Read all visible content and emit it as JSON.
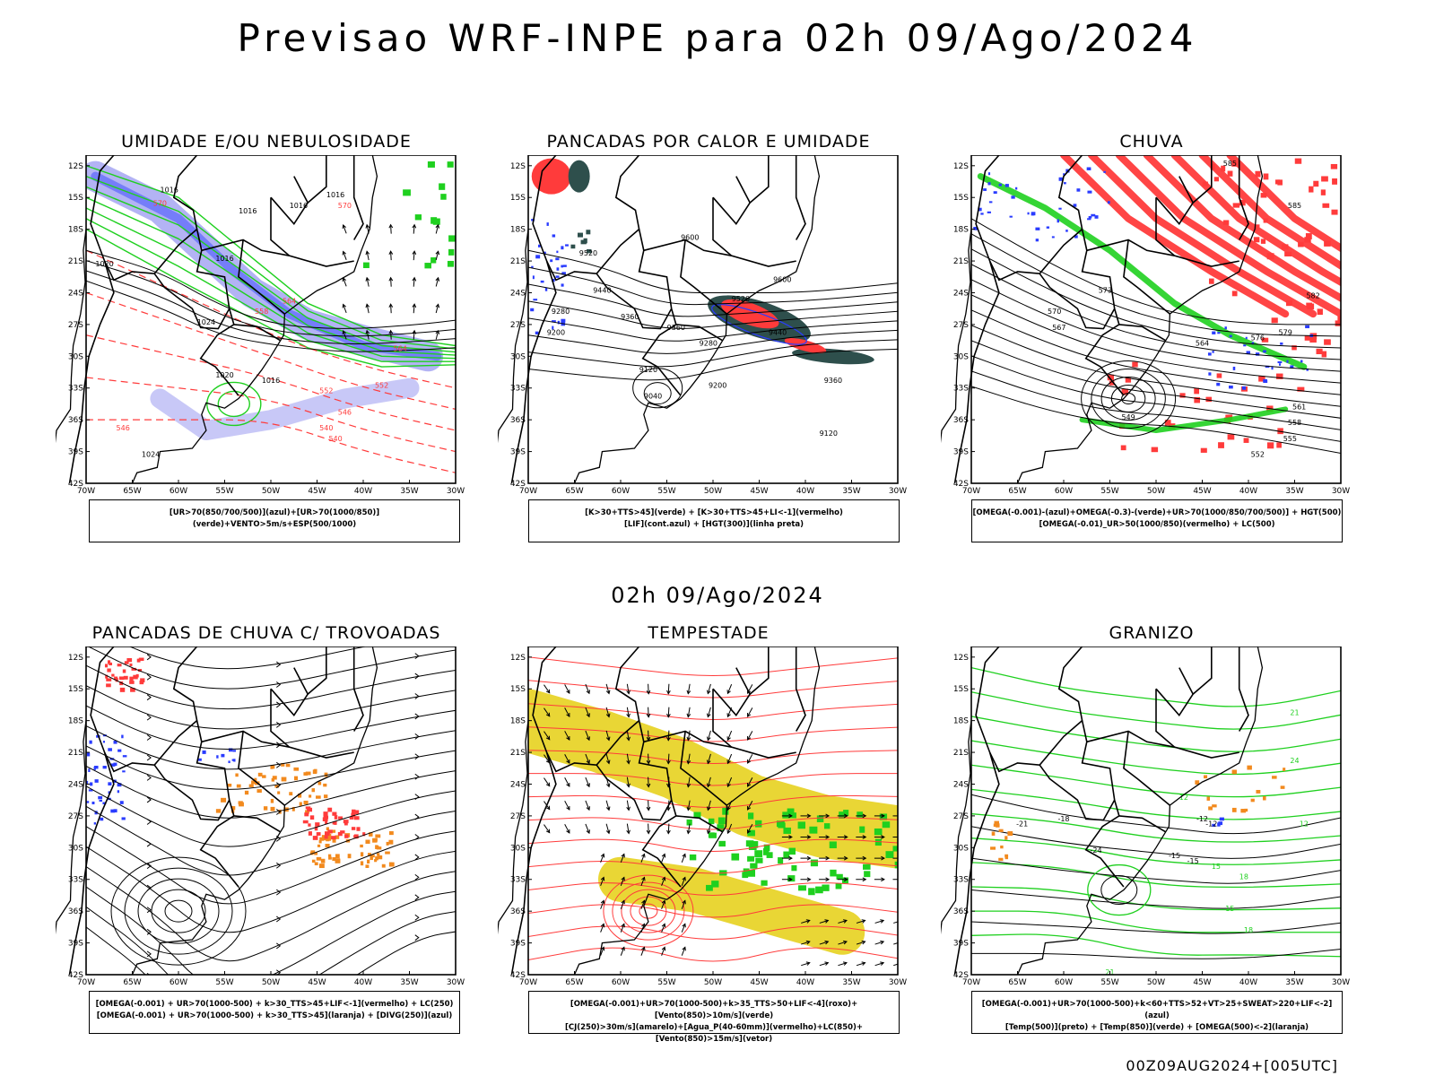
{
  "title": "Previsao WRF-INPE  para 02h 09/Ago/2024",
  "middle_title": "02h 09/Ago/2024",
  "footer": "00Z09AUG2024+[005UTC]",
  "axes": {
    "lat_labels": [
      "12S",
      "15S",
      "18S",
      "21S",
      "24S",
      "27S",
      "30S",
      "33S",
      "36S",
      "39S",
      "42S"
    ],
    "lon_labels": [
      "70W",
      "65W",
      "60W",
      "55W",
      "50W",
      "45W",
      "40W",
      "35W",
      "30W"
    ]
  },
  "colors": {
    "blue": "#2a3cff",
    "green": "#1fd01f",
    "red": "#ff3b3b",
    "orange": "#f28a1e",
    "yellow": "#e8d42a",
    "darkteal": "#2e4f4c",
    "lavender": "#9a9af0",
    "black": "#000000"
  },
  "panels": [
    {
      "title": "UMIDADE E/OU NEBULOSIDADE",
      "legend": [
        "[UR>70(850/700/500)](azul)+[UR>70(1000/850)](verde)+VENTO>5m/s+ESP(500/1000)"
      ],
      "labels": [
        "1016",
        "1016",
        "1016",
        "1016",
        "1016",
        "1024",
        "1020",
        "1020",
        "1016",
        "1024",
        "570",
        "570",
        "564",
        "558",
        "552",
        "546",
        "540",
        "552",
        "546",
        "540",
        "564"
      ]
    },
    {
      "title": "PANCADAS POR CALOR E UMIDADE",
      "legend": [
        "[K>30+TTS>45](verde) + [K>30+TTS>45+LI<-1](vermelho)",
        "[LIF](cont.azul) + [HGT(300)](linha preta)"
      ],
      "labels": [
        "9600",
        "9520",
        "9440",
        "9360",
        "9280",
        "9200",
        "9120",
        "9040",
        "9280",
        "9360",
        "9440",
        "9520",
        "9600",
        "9200",
        "9360",
        "9120"
      ]
    },
    {
      "title": "CHUVA",
      "legend": [
        "[OMEGA(-0.001)-(azul)+OMEGA(-0.3)-(verde)+UR>70(1000/850/700/500)] + HGT(500)",
        "[OMEGA(-0.01)_UR>50(1000/850)(vermelho) + LC(500)"
      ],
      "labels": [
        "585",
        "585",
        "582",
        "579",
        "576",
        "573",
        "570",
        "567",
        "564",
        "561",
        "558",
        "555",
        "552",
        "549"
      ]
    },
    {
      "title": "PANCADAS DE CHUVA C/ TROVOADAS",
      "legend": [
        "[OMEGA(-0.001) + UR>70(1000-500) + k>30_TTS>45+LIF<-1](vermelho) + LC(250)",
        "[OMEGA(-0.001) + UR>70(1000-500) + k>30_TTS>45](laranja) + [DIVG(250)](azul)"
      ],
      "labels": []
    },
    {
      "title": "TEMPESTADE",
      "legend": [
        "[OMEGA(-0.001)+UR>70(1000-500)+k>35_TTS>50+LIF<-4](roxo)+[Vento(850)>10m/s](verde)",
        "[CJ(250)>30m/s](amarelo)+[Agua_P(40-60mm)](vermelho)+LC(850)+[Vento(850)>15m/s](vetor)"
      ],
      "labels": []
    },
    {
      "title": "GRANIZO",
      "legend": [
        "[OMEGA(-0.001)+UR>70(1000-500)+k<60+TTS>52+VT>25+SWEAT>220+LIF<-2](azul)",
        "[Temp(500)](preto) + [Temp(850)](verde) + [OMEGA(500)<-2](laranja)"
      ],
      "labels": [
        "-12",
        "-15",
        "-18",
        "-21",
        "-24",
        "-12",
        "-15",
        "12",
        "15",
        "18",
        "21",
        "24",
        "12",
        "15",
        "18",
        "21"
      ]
    }
  ]
}
